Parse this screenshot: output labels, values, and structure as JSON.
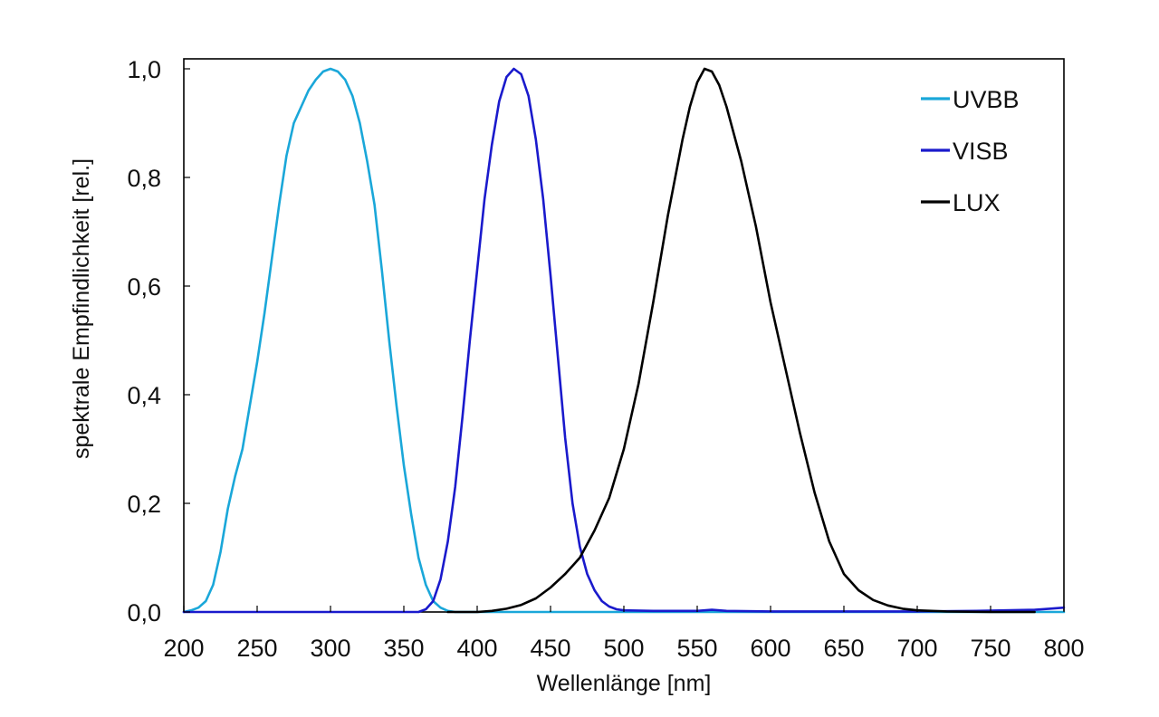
{
  "chart_data": {
    "type": "line",
    "title": "",
    "xlabel": "Wellenlänge [nm]",
    "ylabel": "spektrale Empfindlichkeit [rel.]",
    "xlim": [
      200,
      800
    ],
    "ylim": [
      0,
      1.0
    ],
    "x_ticks": [
      "200",
      "250",
      "300",
      "350",
      "400",
      "450",
      "500",
      "550",
      "600",
      "650",
      "700",
      "750",
      "800"
    ],
    "y_ticks": [
      "0,0",
      "0,2",
      "0,4",
      "0,6",
      "0,8",
      "1,0"
    ],
    "grid": false,
    "legend_position": "top-right",
    "series": [
      {
        "name": "UVBB",
        "color": "#1aa7d9",
        "points": [
          [
            200,
            0.0
          ],
          [
            205,
            0.003
          ],
          [
            210,
            0.008
          ],
          [
            215,
            0.02
          ],
          [
            220,
            0.05
          ],
          [
            225,
            0.11
          ],
          [
            230,
            0.19
          ],
          [
            235,
            0.25
          ],
          [
            240,
            0.3
          ],
          [
            245,
            0.38
          ],
          [
            250,
            0.46
          ],
          [
            255,
            0.55
          ],
          [
            260,
            0.65
          ],
          [
            265,
            0.75
          ],
          [
            270,
            0.84
          ],
          [
            275,
            0.9
          ],
          [
            280,
            0.93
          ],
          [
            285,
            0.96
          ],
          [
            290,
            0.98
          ],
          [
            295,
            0.995
          ],
          [
            300,
            1.0
          ],
          [
            305,
            0.995
          ],
          [
            310,
            0.98
          ],
          [
            315,
            0.95
          ],
          [
            320,
            0.9
          ],
          [
            325,
            0.83
          ],
          [
            330,
            0.75
          ],
          [
            335,
            0.63
          ],
          [
            340,
            0.5
          ],
          [
            345,
            0.38
          ],
          [
            350,
            0.27
          ],
          [
            355,
            0.18
          ],
          [
            360,
            0.1
          ],
          [
            365,
            0.05
          ],
          [
            370,
            0.02
          ],
          [
            375,
            0.008
          ],
          [
            380,
            0.002
          ],
          [
            385,
            0.0
          ],
          [
            800,
            0.0
          ]
        ]
      },
      {
        "name": "VISB",
        "color": "#1a1acc",
        "points": [
          [
            200,
            0.0
          ],
          [
            360,
            0.0
          ],
          [
            365,
            0.005
          ],
          [
            370,
            0.02
          ],
          [
            375,
            0.06
          ],
          [
            380,
            0.13
          ],
          [
            385,
            0.23
          ],
          [
            390,
            0.36
          ],
          [
            395,
            0.5
          ],
          [
            400,
            0.63
          ],
          [
            405,
            0.76
          ],
          [
            410,
            0.86
          ],
          [
            415,
            0.94
          ],
          [
            420,
            0.985
          ],
          [
            425,
            1.0
          ],
          [
            430,
            0.99
          ],
          [
            435,
            0.95
          ],
          [
            440,
            0.87
          ],
          [
            445,
            0.76
          ],
          [
            450,
            0.62
          ],
          [
            455,
            0.47
          ],
          [
            460,
            0.32
          ],
          [
            465,
            0.2
          ],
          [
            470,
            0.12
          ],
          [
            475,
            0.07
          ],
          [
            480,
            0.04
          ],
          [
            485,
            0.02
          ],
          [
            490,
            0.01
          ],
          [
            495,
            0.005
          ],
          [
            500,
            0.003
          ],
          [
            520,
            0.002
          ],
          [
            550,
            0.002
          ],
          [
            560,
            0.004
          ],
          [
            570,
            0.002
          ],
          [
            600,
            0.001
          ],
          [
            700,
            0.001
          ],
          [
            740,
            0.002
          ],
          [
            760,
            0.003
          ],
          [
            780,
            0.004
          ],
          [
            790,
            0.006
          ],
          [
            800,
            0.008
          ]
        ]
      },
      {
        "name": "LUX",
        "color": "#000000",
        "points": [
          [
            380,
            0.0
          ],
          [
            400,
            0.0
          ],
          [
            410,
            0.002
          ],
          [
            420,
            0.006
          ],
          [
            430,
            0.013
          ],
          [
            440,
            0.025
          ],
          [
            450,
            0.045
          ],
          [
            460,
            0.07
          ],
          [
            470,
            0.1
          ],
          [
            480,
            0.15
          ],
          [
            490,
            0.21
          ],
          [
            500,
            0.3
          ],
          [
            510,
            0.42
          ],
          [
            520,
            0.57
          ],
          [
            530,
            0.73
          ],
          [
            540,
            0.87
          ],
          [
            545,
            0.93
          ],
          [
            550,
            0.975
          ],
          [
            555,
            1.0
          ],
          [
            560,
            0.995
          ],
          [
            565,
            0.97
          ],
          [
            570,
            0.93
          ],
          [
            580,
            0.83
          ],
          [
            590,
            0.71
          ],
          [
            600,
            0.57
          ],
          [
            610,
            0.45
          ],
          [
            620,
            0.33
          ],
          [
            630,
            0.22
          ],
          [
            640,
            0.13
          ],
          [
            650,
            0.07
          ],
          [
            660,
            0.04
          ],
          [
            670,
            0.022
          ],
          [
            680,
            0.012
          ],
          [
            690,
            0.006
          ],
          [
            700,
            0.003
          ],
          [
            720,
            0.001
          ],
          [
            750,
            0.0
          ],
          [
            780,
            0.0
          ]
        ]
      }
    ]
  }
}
